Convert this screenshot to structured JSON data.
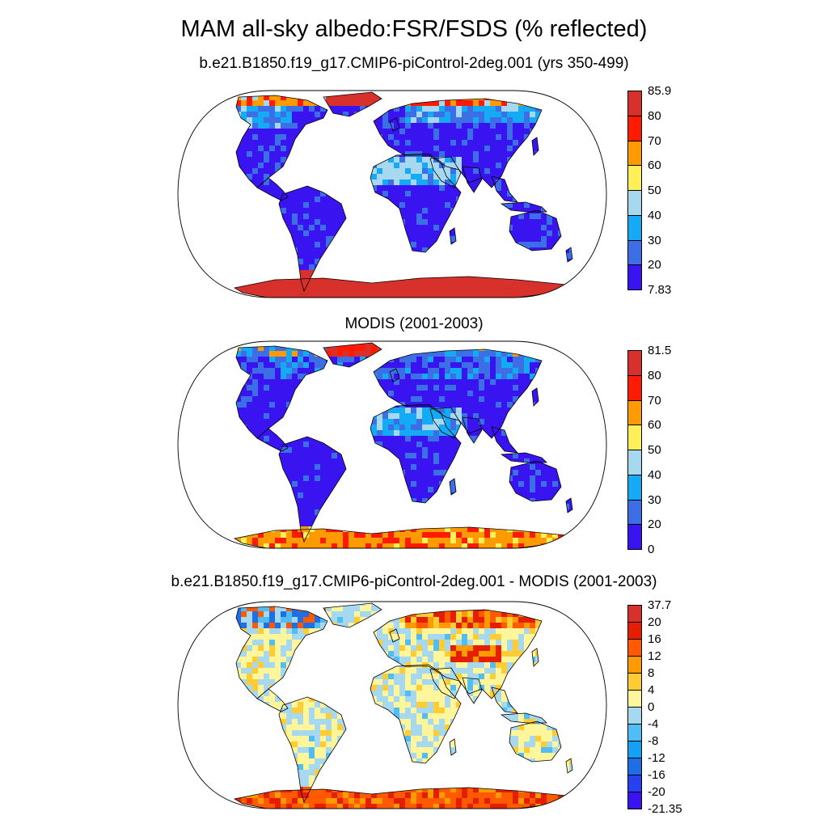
{
  "title": "MAM all-sky albedo:FSR/FSDS (% reflected)",
  "panels": [
    {
      "title": "b.e21.B1850.f19_g17.CMIP6-piControl-2deg.001 (yrs 350-499)",
      "colorbar": {
        "labels": [
          "85.9",
          "80",
          "70",
          "60",
          "50",
          "40",
          "30",
          "20",
          "7.83"
        ],
        "colors": [
          "#d8302a",
          "#ff1a00",
          "#ff9a00",
          "#fff05a",
          "#a6d8f0",
          "#14aaf5",
          "#3c6ee6",
          "#3a14f0"
        ]
      }
    },
    {
      "title": "MODIS (2001-2003)",
      "colorbar": {
        "labels": [
          "81.5",
          "80",
          "70",
          "60",
          "50",
          "40",
          "30",
          "20",
          "0"
        ],
        "colors": [
          "#d8302a",
          "#ff1a00",
          "#ff9a00",
          "#fff05a",
          "#a6d8f0",
          "#14aaf5",
          "#3c6ee6",
          "#3a14f0"
        ]
      }
    },
    {
      "title": "b.e21.B1850.f19_g17.CMIP6-piControl-2deg.001 - MODIS (2001-2003)",
      "colorbar": {
        "labels": [
          "37.7",
          "20",
          "16",
          "12",
          "8",
          "4",
          "0",
          "-4",
          "-8",
          "-12",
          "-16",
          "-20",
          "-21.35"
        ],
        "colors": [
          "#d8302a",
          "#e61e00",
          "#ff5a00",
          "#ff9a00",
          "#ffcc33",
          "#fff59a",
          "#a6d8f0",
          "#50bef5",
          "#14a0f5",
          "#1e6ee6",
          "#2840f0",
          "#3a14f0"
        ]
      }
    }
  ]
}
